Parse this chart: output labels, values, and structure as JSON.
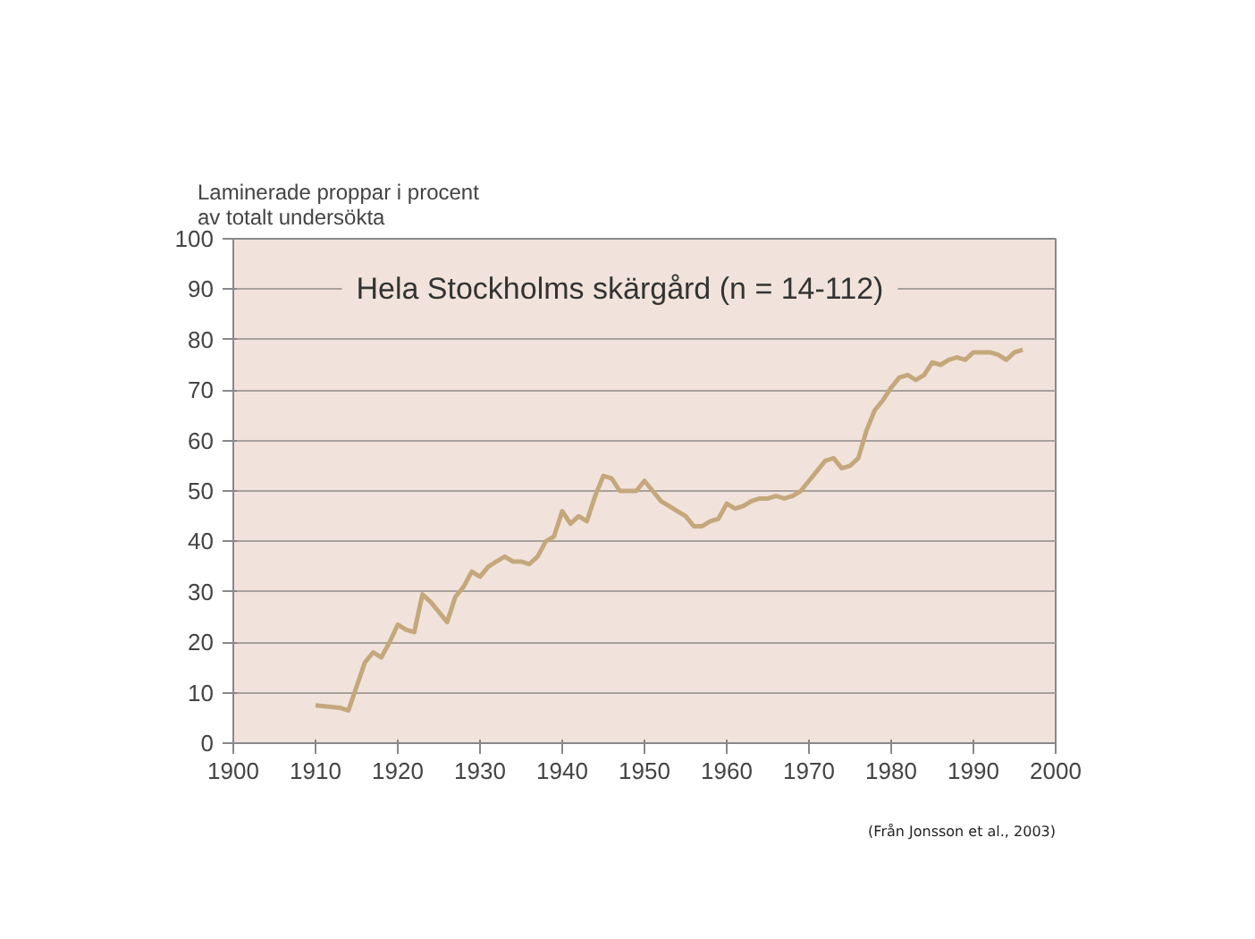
{
  "chart_data": {
    "type": "line",
    "title": "Hela Stockholms skärgård (n = 14-112)",
    "ylabel": "Laminerade proppar i procent\nav totalt undersökta",
    "annotations": [
      "(Från Jonsson et al., 2003)"
    ],
    "x": [
      1910,
      1913,
      1914,
      1916,
      1917,
      1918,
      1919,
      1920,
      1921,
      1922,
      1923,
      1924,
      1925,
      1926,
      1927,
      1928,
      1929,
      1930,
      1931,
      1932,
      1933,
      1934,
      1935,
      1936,
      1937,
      1938,
      1939,
      1940,
      1941,
      1942,
      1943,
      1944,
      1945,
      1946,
      1947,
      1948,
      1949,
      1950,
      1951,
      1952,
      1953,
      1954,
      1955,
      1956,
      1957,
      1958,
      1959,
      1960,
      1961,
      1962,
      1963,
      1964,
      1965,
      1966,
      1967,
      1968,
      1969,
      1970,
      1971,
      1972,
      1973,
      1974,
      1975,
      1976,
      1977,
      1978,
      1979,
      1980,
      1981,
      1982,
      1983,
      1984,
      1985,
      1986,
      1987,
      1988,
      1989,
      1990,
      1991,
      1992,
      1993,
      1994,
      1995,
      1996
    ],
    "series": [
      {
        "color": "#c4a87c",
        "values": [
          7.5,
          7,
          6.5,
          16,
          18,
          17,
          20,
          23.5,
          22.5,
          22,
          29.5,
          28,
          26,
          24,
          29,
          31,
          34,
          33,
          35,
          36,
          37,
          36,
          36,
          35.5,
          37,
          40,
          41,
          46,
          43.5,
          45,
          44,
          49,
          53,
          52.5,
          50,
          50,
          50,
          52,
          50,
          48,
          47,
          46,
          45,
          43,
          43,
          44,
          44.5,
          47.5,
          46.5,
          47,
          48,
          48.5,
          48.5,
          49,
          48.5,
          49,
          50,
          52,
          54,
          56,
          56.5,
          54.5,
          55,
          56.5,
          62,
          66,
          68,
          70.5,
          72.5,
          73,
          72,
          73,
          75.5,
          75,
          76,
          76.5,
          76,
          77.5,
          77.5,
          77.5,
          77,
          76,
          77.5,
          78
        ]
      }
    ],
    "xlim": [
      1900,
      2000
    ],
    "xticks": [
      1900,
      1910,
      1920,
      1930,
      1940,
      1950,
      1960,
      1970,
      1980,
      1990,
      2000
    ],
    "ylim": [
      0,
      100
    ],
    "yticks": [
      0,
      10,
      20,
      30,
      40,
      50,
      60,
      70,
      80,
      90,
      100
    ],
    "grid": "y",
    "marker": "none",
    "line_style": "solid"
  }
}
